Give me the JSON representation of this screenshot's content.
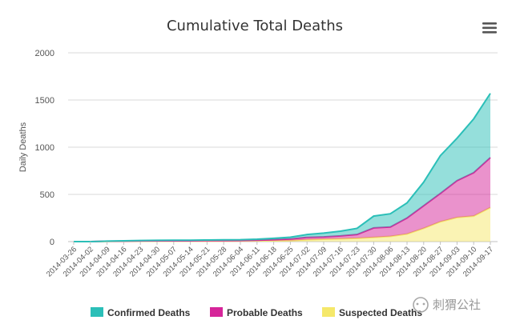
{
  "chart_data": {
    "type": "area",
    "title": "Cumulative Total Deaths",
    "ylabel": "Daily Deaths",
    "xlabel": "",
    "ylim": [
      0,
      2000
    ],
    "y_ticks": [
      0,
      500,
      1000,
      1500,
      2000
    ],
    "stacked": true,
    "grid": true,
    "legend_position": "bottom",
    "categories": [
      "2014-03-26",
      "2014-04-02",
      "2014-04-09",
      "2014-04-16",
      "2014-04-23",
      "2014-04-30",
      "2014-05-07",
      "2014-05-14",
      "2014-05-21",
      "2014-05-28",
      "2014-06-04",
      "2014-06-11",
      "2014-06-18",
      "2014-06-25",
      "2014-07-02",
      "2014-07-09",
      "2014-07-16",
      "2014-07-23",
      "2014-07-30",
      "2014-08-06",
      "2014-08-13",
      "2014-08-20",
      "2014-08-27",
      "2014-09-03",
      "2014-09-10",
      "2014-09-17"
    ],
    "series": [
      {
        "name": "Suspected Deaths",
        "color": "#f5e86a",
        "values": [
          0,
          0,
          2,
          3,
          4,
          5,
          5,
          5,
          6,
          6,
          7,
          8,
          10,
          12,
          20,
          25,
          30,
          35,
          45,
          55,
          80,
          140,
          210,
          255,
          270,
          360
        ]
      },
      {
        "name": "Probable Deaths",
        "color": "#d6259a",
        "values": [
          0,
          0,
          2,
          2,
          3,
          4,
          4,
          4,
          5,
          5,
          5,
          7,
          10,
          15,
          25,
          25,
          30,
          40,
          100,
          100,
          170,
          240,
          300,
          390,
          460,
          530
        ]
      },
      {
        "name": "Confirmed Deaths",
        "color": "#2bbfb8",
        "values": [
          0,
          0,
          1,
          3,
          5,
          5,
          6,
          6,
          6,
          8,
          8,
          10,
          15,
          20,
          30,
          40,
          50,
          65,
          125,
          140,
          160,
          250,
          400,
          450,
          570,
          680
        ]
      }
    ]
  },
  "watermark": "刺猬公社",
  "menu_icon": "hamburger-menu-icon"
}
